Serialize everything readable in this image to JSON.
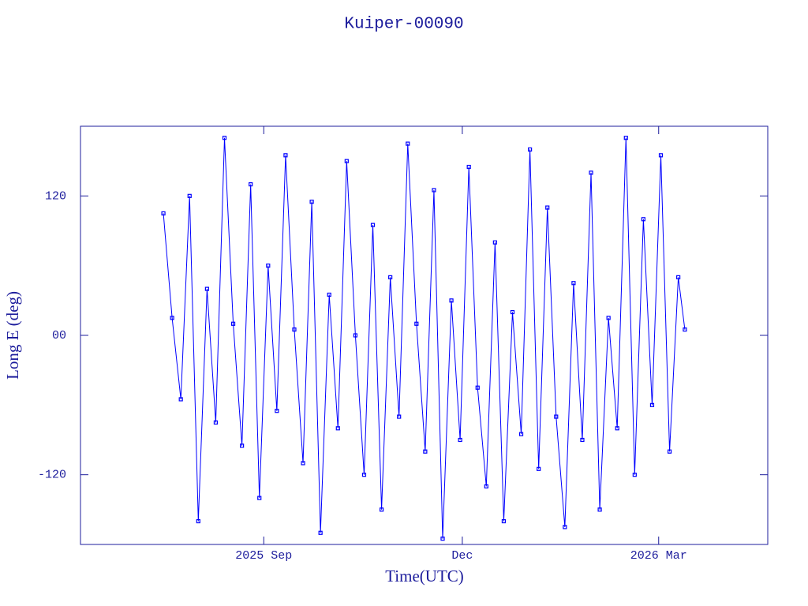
{
  "chart_data": {
    "type": "line",
    "title": "Kuiper-00090",
    "x_label": "Time(UTC)",
    "y_label": "Long E (deg)",
    "xlim": [
      "2025-06-09",
      "2026-04-20"
    ],
    "xticks": [
      {
        "value": "2025-09-01",
        "label": "2025 Sep"
      },
      {
        "value": "2025-12-01",
        "label": "Dec"
      },
      {
        "value": "2026-03-01",
        "label": "2026 Mar"
      }
    ],
    "ylim": [
      -180,
      180
    ],
    "yticks": [
      -120,
      {
        "value": 0,
        "label": "00"
      },
      120
    ],
    "markers": true,
    "x": [
      "2025-07-17",
      "2025-07-21",
      "2025-07-25",
      "2025-07-29",
      "2025-08-02",
      "2025-08-06",
      "2025-08-10",
      "2025-08-14",
      "2025-08-18",
      "2025-08-22",
      "2025-08-26",
      "2025-08-30",
      "2025-09-03",
      "2025-09-07",
      "2025-09-11",
      "2025-09-15",
      "2025-09-19",
      "2025-09-23",
      "2025-09-27",
      "2025-10-01",
      "2025-10-05",
      "2025-10-09",
      "2025-10-13",
      "2025-10-17",
      "2025-10-21",
      "2025-10-25",
      "2025-10-29",
      "2025-11-02",
      "2025-11-06",
      "2025-11-10",
      "2025-11-14",
      "2025-11-18",
      "2025-11-22",
      "2025-11-26",
      "2025-11-30",
      "2025-12-04",
      "2025-12-08",
      "2025-12-12",
      "2025-12-16",
      "2025-12-20",
      "2025-12-24",
      "2025-12-28",
      "2026-01-01",
      "2026-01-05",
      "2026-01-09",
      "2026-01-13",
      "2026-01-17",
      "2026-01-21",
      "2026-01-25",
      "2026-01-29",
      "2026-02-02",
      "2026-02-06",
      "2026-02-10",
      "2026-02-14",
      "2026-02-18",
      "2026-02-22",
      "2026-02-26",
      "2026-03-02",
      "2026-03-06",
      "2026-03-10",
      "2026-03-13"
    ],
    "series": [
      {
        "color": "#0000ff",
        "values": [
          105,
          15,
          -55,
          120,
          -160,
          40,
          -75,
          170,
          10,
          -95,
          130,
          -140,
          60,
          -65,
          155,
          5,
          -110,
          115,
          -170,
          35,
          -80,
          150,
          0,
          -120,
          95,
          -150,
          50,
          -70,
          165,
          10,
          -100,
          125,
          -175,
          30,
          -90,
          145,
          -45,
          -130,
          80,
          -160,
          20,
          -85,
          160,
          -115,
          110,
          -70,
          -165,
          45,
          -90,
          140,
          -150,
          15,
          -80,
          170,
          -120,
          100,
          -60,
          155,
          -100,
          50,
          5
        ]
      }
    ]
  }
}
